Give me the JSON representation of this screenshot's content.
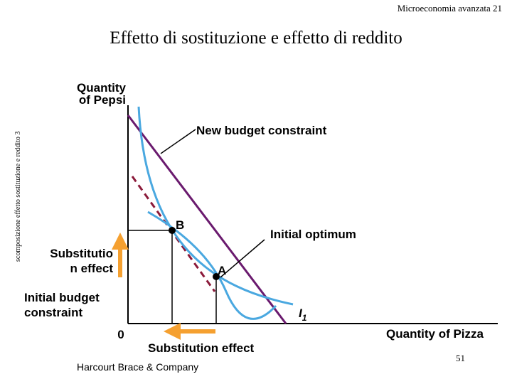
{
  "header": {
    "text": "Microeconomia avanzata 21"
  },
  "title": "Effetto di sostituzione e effetto di reddito",
  "side_note": "scomposizione effetto sostituzione e reddito 3",
  "diagram": {
    "y_axis_label_line1": "Quantity",
    "y_axis_label_line2": "of Pepsi",
    "x_axis_label": "Quantity of Pizza",
    "origin_label": "0",
    "new_budget_label": "New budget constraint",
    "initial_optimum_label": "Initial optimum",
    "point_b_label": "B",
    "point_a_label": "A",
    "indifference_label": "I",
    "indifference_subscript": "1",
    "substitution_effect_vertical_line1": "Substitutio",
    "substitution_effect_vertical_line2": "n effect",
    "initial_budget_line1": "Initial budget",
    "initial_budget_line2": "constraint",
    "substitution_effect_horizontal": "Substitution effect",
    "colors": {
      "budget_line": "#6a1a6e",
      "indifference_curve": "#4aa8e0",
      "compensated_budget": "#8b1a3a",
      "arrow": "#f5a030",
      "axis": "#000000"
    }
  },
  "footer": {
    "publisher": "Harcourt Brace & Company",
    "page_number": "51"
  }
}
